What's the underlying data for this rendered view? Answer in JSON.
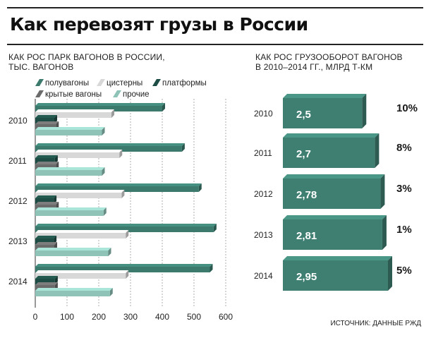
{
  "title": "Как перевозят грузы в России",
  "source": "ИСТОЧНИК: ДАННЫЕ РЖД",
  "colors": {
    "poluvagony": "#3b7a6d",
    "cisterny": "#d8d8d8",
    "platformy": "#1e4d45",
    "krytye": "#6b6b6b",
    "prochie": "#8fc3b8",
    "oborot": "#3f7f72"
  },
  "chart_data": [
    {
      "type": "bar",
      "orientation": "horizontal",
      "title_lines": [
        "КАК РОС ПАРК ВАГОНОВ В РОССИИ,",
        "ТЫС. ВАГОНОВ"
      ],
      "categories": [
        "2010",
        "2011",
        "2012",
        "2013",
        "2014"
      ],
      "series": [
        {
          "name": "полувагоны",
          "values": [
            400,
            462,
            515,
            562,
            550
          ]
        },
        {
          "name": "цистерны",
          "values": [
            240,
            265,
            272,
            285,
            285
          ]
        },
        {
          "name": "платформы",
          "values": [
            60,
            62,
            58,
            58,
            62
          ]
        },
        {
          "name": "крытые вагоны",
          "values": [
            65,
            65,
            65,
            60,
            62
          ]
        },
        {
          "name": "прочие",
          "values": [
            210,
            210,
            215,
            230,
            235
          ]
        }
      ],
      "xlim": [
        0,
        600
      ],
      "xticks": [
        "0",
        "100",
        "200",
        "300",
        "400",
        "500",
        "600"
      ],
      "grid": true,
      "legend_position": "top"
    },
    {
      "type": "bar",
      "orientation": "horizontal",
      "title_lines": [
        "КАК РОС ГРУЗООБОРОТ ВАГОНОВ",
        "В 2010–2014 ГГ., МЛРД Т-КМ"
      ],
      "categories": [
        "2010",
        "2011",
        "2012",
        "2013",
        "2014"
      ],
      "values": [
        2.5,
        2.7,
        2.78,
        2.81,
        2.95
      ],
      "value_labels": [
        "2,5",
        "2,7",
        "2,78",
        "2,81",
        "2,95"
      ],
      "growth_labels": [
        "10%",
        "8%",
        "3%",
        "1%",
        "5%"
      ]
    }
  ]
}
